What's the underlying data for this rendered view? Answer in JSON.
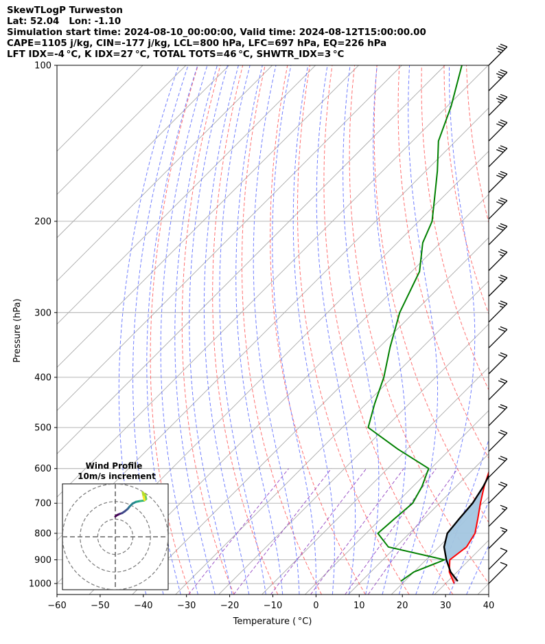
{
  "header": {
    "line1": "SkewTLogP Turweston",
    "line2": "Lat: 52.04   Lon: -1.10",
    "line3": "Simulation start time: 2024-08-10_00:00:00, Valid time: 2024-08-12T15:00:00.00",
    "line4": "CAPE=1105 j/kg, CIN=-177 j/kg, LCL=800 hPa, LFC=697 hPa, EQ=226 hPa",
    "line5": "LFT IDX=-4 °C, K IDX=27 °C, TOTAL TOTS=46 °C, SHWTR_IDX=3 °C"
  },
  "chart_data": {
    "type": "line",
    "xlabel": "Temperature ( °C)",
    "ylabel": "Pressure (hPa)",
    "xlim": [
      -60,
      40
    ],
    "ylim": [
      1050,
      100
    ],
    "y_scale": "log",
    "skew": "45 degrees",
    "x_ticks": [
      "−60",
      "−50",
      "−40",
      "−30",
      "−20",
      "−10",
      "0",
      "10",
      "20",
      "30",
      "40"
    ],
    "y_ticks": [
      "100",
      "200",
      "300",
      "400",
      "500",
      "600",
      "700",
      "800",
      "900",
      "1000"
    ],
    "colors": {
      "temperature": "#ff0000",
      "dewpoint": "#008000",
      "parcel": "#000000",
      "cape_fill": "#e8a0a3",
      "cin_fill": "#a3c6e0",
      "isotherm_grid": "#aaaaaa",
      "dry_adiabat": "#ff6060",
      "moist_adiabat": "#6070ff",
      "mixing_ratio": "#9040c0"
    },
    "series": [
      {
        "name": "Temperature",
        "points": [
          [
            1000,
            32
          ],
          [
            950,
            28.2
          ],
          [
            900,
            25.5
          ],
          [
            850,
            26.4
          ],
          [
            800,
            25.2
          ],
          [
            750,
            22.5
          ],
          [
            700,
            19.5
          ],
          [
            650,
            16.5
          ],
          [
            600,
            13.7
          ],
          [
            550,
            12.2
          ],
          [
            500,
            9.6
          ],
          [
            450,
            6.1
          ],
          [
            400,
            1.2
          ],
          [
            350,
            -5.4
          ],
          [
            300,
            -12.0
          ],
          [
            250,
            -19.8
          ],
          [
            226,
            -25.0
          ],
          [
            200,
            -28.2
          ],
          [
            180,
            -28.9
          ],
          [
            160,
            -32.7
          ],
          [
            140,
            -37.1
          ],
          [
            120,
            -44.3
          ],
          [
            110,
            -48.5
          ],
          [
            100,
            -52.9
          ]
        ]
      },
      {
        "name": "Dewpoint",
        "points": [
          [
            990,
            19.1
          ],
          [
            950,
            20.0
          ],
          [
            900,
            24.3
          ],
          [
            850,
            8.3
          ],
          [
            800,
            2.7
          ],
          [
            750,
            3.2
          ],
          [
            700,
            3.8
          ],
          [
            650,
            2.1
          ],
          [
            600,
            -0.5
          ],
          [
            550,
            -12.2
          ],
          [
            500,
            -24.0
          ],
          [
            450,
            -28.0
          ],
          [
            400,
            -32.0
          ],
          [
            350,
            -37.5
          ],
          [
            300,
            -43.3
          ],
          [
            250,
            -48.2
          ],
          [
            220,
            -54.1
          ],
          [
            200,
            -56.9
          ],
          [
            180,
            -61.8
          ],
          [
            160,
            -67.3
          ],
          [
            140,
            -74.0
          ],
          [
            120,
            -79.1
          ],
          [
            100,
            -86.1
          ]
        ]
      },
      {
        "name": "Parcel",
        "points": [
          [
            990,
            32.3
          ],
          [
            950,
            28.5
          ],
          [
            900,
            24.7
          ],
          [
            850,
            21.2
          ],
          [
            800,
            18.8
          ],
          [
            750,
            18.2
          ],
          [
            700,
            17.7
          ],
          [
            650,
            16.3
          ],
          [
            600,
            14.3
          ],
          [
            550,
            11.3
          ],
          [
            500,
            7.2
          ],
          [
            450,
            3.0
          ],
          [
            400,
            -2.2
          ],
          [
            350,
            -8.4
          ],
          [
            300,
            -15.4
          ],
          [
            250,
            -23.8
          ],
          [
            226,
            -28.0
          ],
          [
            200,
            -32.7
          ],
          [
            180,
            -36.6
          ],
          [
            160,
            -41.2
          ],
          [
            140,
            -46.2
          ],
          [
            120,
            -52.8
          ],
          [
            100,
            -61.5
          ]
        ]
      }
    ],
    "wind_barbs": [
      {
        "p": 100,
        "speed_kt": 35
      },
      {
        "p": 112,
        "speed_kt": 35
      },
      {
        "p": 125,
        "speed_kt": 35
      },
      {
        "p": 140,
        "speed_kt": 30
      },
      {
        "p": 157,
        "speed_kt": 30
      },
      {
        "p": 176,
        "speed_kt": 30
      },
      {
        "p": 198,
        "speed_kt": 30
      },
      {
        "p": 222,
        "speed_kt": 30
      },
      {
        "p": 249,
        "speed_kt": 25
      },
      {
        "p": 279,
        "speed_kt": 25
      },
      {
        "p": 313,
        "speed_kt": 25
      },
      {
        "p": 351,
        "speed_kt": 20
      },
      {
        "p": 394,
        "speed_kt": 20
      },
      {
        "p": 442,
        "speed_kt": 20
      },
      {
        "p": 496,
        "speed_kt": 20
      },
      {
        "p": 556,
        "speed_kt": 20
      },
      {
        "p": 624,
        "speed_kt": 20
      },
      {
        "p": 700,
        "speed_kt": 20
      },
      {
        "p": 776,
        "speed_kt": 15
      },
      {
        "p": 856,
        "speed_kt": 15
      },
      {
        "p": 939,
        "speed_kt": 10
      },
      {
        "p": 1000,
        "speed_kt": 10
      }
    ],
    "inset": {
      "title": "Wind Profile",
      "subtitle": "10m/s increment",
      "hodograph_u": [
        0.0,
        1.0,
        2.5,
        4.0,
        5.5,
        7.2,
        8.5,
        10.0,
        12.0,
        14.5,
        16.8,
        18.0,
        17.5,
        16.0,
        16.5,
        17.0
      ],
      "hodograph_v": [
        3.0,
        3.8,
        4.5,
        5.0,
        6.0,
        7.4,
        9.0,
        10.5,
        11.5,
        12.0,
        12.3,
        13.2,
        15.5,
        17.0,
        14.5,
        12.5
      ]
    }
  }
}
